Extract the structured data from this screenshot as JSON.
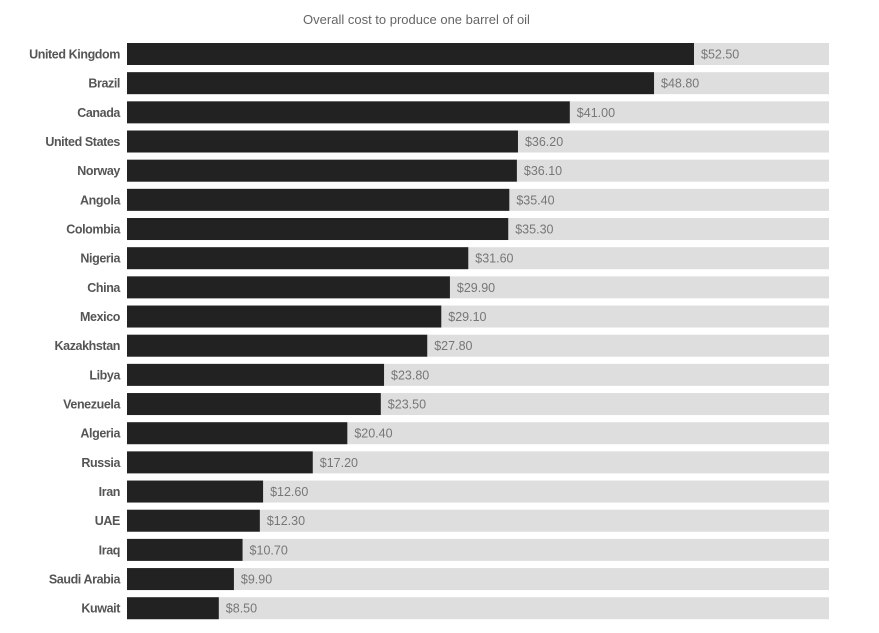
{
  "chart_data": {
    "type": "bar",
    "orientation": "horizontal",
    "title": "Overall cost to produce one barrel of oil",
    "xlabel": "",
    "ylabel": "",
    "xlim": [
      0,
      65
    ],
    "grid": false,
    "value_prefix": "$",
    "categories": [
      "United Kingdom",
      "Brazil",
      "Canada",
      "United States",
      "Norway",
      "Angola",
      "Colombia",
      "Nigeria",
      "China",
      "Mexico",
      "Kazakhstan",
      "Libya",
      "Venezuela",
      "Algeria",
      "Russia",
      "Iran",
      "UAE",
      "Iraq",
      "Saudi Arabia",
      "Kuwait"
    ],
    "values": [
      52.5,
      48.8,
      41.0,
      36.2,
      36.1,
      35.4,
      35.3,
      31.6,
      29.9,
      29.1,
      27.8,
      23.8,
      23.5,
      20.4,
      17.2,
      12.6,
      12.3,
      10.7,
      9.9,
      8.5
    ],
    "value_labels": [
      "$52.50",
      "$48.80",
      "$41.00",
      "$36.20",
      "$36.10",
      "$35.40",
      "$35.30",
      "$31.60",
      "$29.90",
      "$29.10",
      "$27.80",
      "$23.80",
      "$23.50",
      "$20.40",
      "$17.20",
      "$12.60",
      "$12.30",
      "$10.70",
      "$9.90",
      "$8.50"
    ]
  },
  "colors": {
    "bar": "#222222",
    "track": "#dedede"
  }
}
